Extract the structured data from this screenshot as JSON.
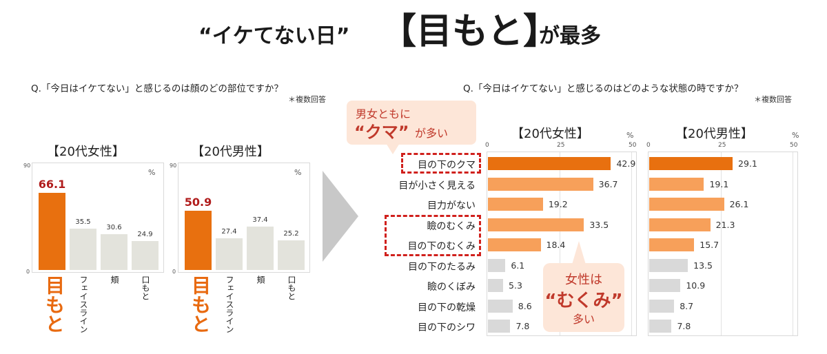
{
  "title": {
    "prefix": "“イケてない日”",
    "highlight": "【目もと】",
    "suffix": "が最多"
  },
  "left": {
    "question": "Q.「今日はイケてない」と感じるのは顔のどの部位ですか？",
    "note": "＊複数回答"
  },
  "right": {
    "question": "Q.「今日はイケてない」と感じるのはどのような状態の時ですか？",
    "note": "＊複数回答"
  },
  "callout_top": {
    "line1": "男女ともに",
    "line2": "“クマ”",
    "line3": "が多い"
  },
  "callout_bottom": {
    "line1": "女性は",
    "line2": "“むくみ”",
    "line3": "多い"
  },
  "colors": {
    "orange": "#e8700f",
    "light_orange": "#f7a05a",
    "gray_bar": "#e3e3dc",
    "light_gray_bar": "#d9d9d9",
    "red": "#b01c1c"
  },
  "chart_data": [
    {
      "type": "bar",
      "title": "【20代女性】",
      "unit": "%",
      "ylim": [
        0,
        90
      ],
      "y_ticks": [
        "90",
        "0"
      ],
      "categories": [
        "目もと",
        "フェイスライン",
        "頬",
        "口もと"
      ],
      "values": [
        66.1,
        35.5,
        30.6,
        24.9
      ],
      "value_labels": [
        "66.1",
        "35.5",
        "30.6",
        "24.9"
      ]
    },
    {
      "type": "bar",
      "title": "【20代男性】",
      "unit": "%",
      "ylim": [
        0,
        90
      ],
      "y_ticks": [
        "90",
        "0"
      ],
      "categories": [
        "目もと",
        "フェイスライン",
        "頬",
        "口もと"
      ],
      "values": [
        50.9,
        27.4,
        37.4,
        25.2
      ],
      "value_labels": [
        "50.9",
        "27.4",
        "37.4",
        "25.2"
      ]
    },
    {
      "type": "bar",
      "orientation": "horizontal",
      "title": "【20代女性】",
      "unit": "%",
      "xlim": [
        0,
        50
      ],
      "x_ticks": [
        "0",
        "25",
        "50"
      ],
      "categories": [
        "目の下のクマ",
        "目が小さく見える",
        "目力がない",
        "瞼のむくみ",
        "目の下のむくみ",
        "目の下のたるみ",
        "瞼のくぼみ",
        "目の下の乾燥",
        "目の下のシワ"
      ],
      "values": [
        42.9,
        36.7,
        19.2,
        33.5,
        18.4,
        6.1,
        5.3,
        8.6,
        7.8
      ],
      "value_labels": [
        "42.9",
        "36.7",
        "19.2",
        "33.5",
        "18.4",
        "6.1",
        "5.3",
        "8.6",
        "7.8"
      ]
    },
    {
      "type": "bar",
      "orientation": "horizontal",
      "title": "【20代男性】",
      "unit": "%",
      "xlim": [
        0,
        50
      ],
      "x_ticks": [
        "0",
        "25",
        "50"
      ],
      "categories": [
        "目の下のクマ",
        "目が小さく見える",
        "目力がない",
        "瞼のむくみ",
        "目の下のむくみ",
        "目の下のたるみ",
        "瞼のくぼみ",
        "目の下の乾燥",
        "目の下のシワ"
      ],
      "values": [
        29.1,
        19.1,
        26.1,
        21.3,
        15.7,
        13.5,
        10.9,
        8.7,
        7.8
      ],
      "value_labels": [
        "29.1",
        "19.1",
        "26.1",
        "21.3",
        "15.7",
        "13.5",
        "10.9",
        "8.7",
        "7.8"
      ]
    }
  ]
}
